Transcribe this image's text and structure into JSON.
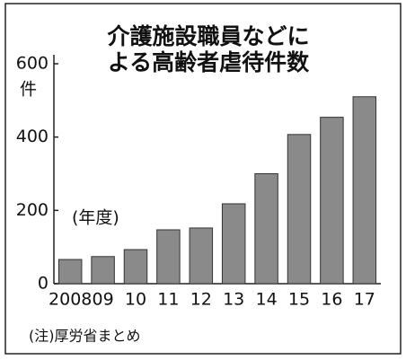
{
  "chart_data": {
    "type": "bar",
    "title": "介護施設職員などに",
    "subtitle": "よる高齢者虐待件数",
    "y_unit": "件",
    "annotation": "(年度)",
    "note": "(注)厚労省まとめ",
    "categories": [
      "2008",
      "09",
      "10",
      "11",
      "12",
      "13",
      "14",
      "15",
      "16",
      "17"
    ],
    "values": [
      66,
      74,
      93,
      147,
      152,
      218,
      300,
      407,
      454,
      510
    ],
    "color": "#8a8a8a",
    "ylim": [
      0,
      600
    ],
    "yticks": [
      0,
      200,
      400,
      600
    ],
    "grid": false
  }
}
